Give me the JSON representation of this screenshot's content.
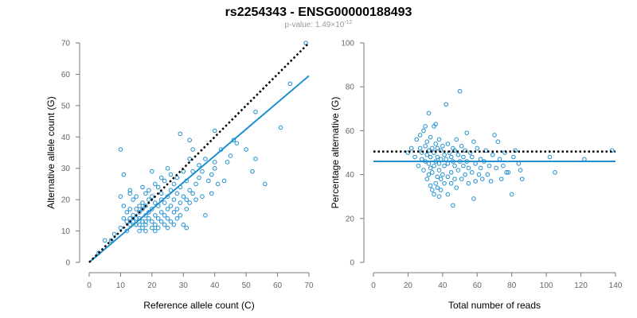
{
  "title": "rs2254343 - ENSG00000188493",
  "subtitle": {
    "prefix": "p-value: 1.49×10",
    "exponent": "-12"
  },
  "colors": {
    "points": "#1f8fd0",
    "fit": "#1f8fd0",
    "reference": "#000000",
    "axis": "#777777"
  },
  "chart_data": [
    {
      "type": "scatter",
      "xlabel": "Reference allele count (C)",
      "ylabel": "Alternative allele count (G)",
      "xlim": [
        0,
        70
      ],
      "ylim": [
        0,
        70
      ],
      "xticks": [
        0,
        10,
        20,
        30,
        40,
        50,
        60,
        70
      ],
      "yticks": [
        0,
        10,
        20,
        30,
        40,
        50,
        60,
        70
      ],
      "grid": false,
      "series": [
        {
          "values": [
            [
              3,
              3
            ],
            [
              5,
              7
            ],
            [
              7,
              7
            ],
            [
              8,
              9
            ],
            [
              10,
              11
            ],
            [
              10,
              36
            ],
            [
              10,
              21
            ],
            [
              11,
              28
            ],
            [
              11,
              18
            ],
            [
              11,
              14
            ],
            [
              12,
              16
            ],
            [
              12,
              13
            ],
            [
              12,
              10
            ],
            [
              13,
              23
            ],
            [
              13,
              22
            ],
            [
              13,
              17
            ],
            [
              13,
              14
            ],
            [
              13,
              12
            ],
            [
              14,
              15
            ],
            [
              14,
              13
            ],
            [
              14,
              20
            ],
            [
              15,
              17
            ],
            [
              15,
              12
            ],
            [
              15,
              14
            ],
            [
              15,
              21
            ],
            [
              16,
              18
            ],
            [
              16,
              16
            ],
            [
              16,
              14
            ],
            [
              16,
              12
            ],
            [
              16,
              10
            ],
            [
              17,
              19
            ],
            [
              17,
              17
            ],
            [
              17,
              13
            ],
            [
              17,
              11
            ],
            [
              17,
              24
            ],
            [
              18,
              22
            ],
            [
              18,
              18
            ],
            [
              18,
              15
            ],
            [
              18,
              13
            ],
            [
              18,
              12
            ],
            [
              18,
              10
            ],
            [
              19,
              20
            ],
            [
              19,
              16
            ],
            [
              19,
              14
            ],
            [
              19,
              23
            ],
            [
              20,
              21
            ],
            [
              20,
              17
            ],
            [
              20,
              13
            ],
            [
              20,
              11
            ],
            [
              20,
              29
            ],
            [
              21,
              19
            ],
            [
              21,
              15
            ],
            [
              21,
              12
            ],
            [
              21,
              10
            ],
            [
              21,
              25
            ],
            [
              22,
              18
            ],
            [
              22,
              14
            ],
            [
              22,
              24
            ],
            [
              22,
              11
            ],
            [
              23,
              20
            ],
            [
              23,
              16
            ],
            [
              23,
              13
            ],
            [
              23,
              22
            ],
            [
              23,
              27
            ],
            [
              24,
              19
            ],
            [
              24,
              15
            ],
            [
              24,
              12
            ],
            [
              24,
              26
            ],
            [
              25,
              21
            ],
            [
              25,
              17
            ],
            [
              25,
              14
            ],
            [
              25,
              11
            ],
            [
              25,
              30
            ],
            [
              26,
              23
            ],
            [
              26,
              18
            ],
            [
              26,
              13
            ],
            [
              26,
              28
            ],
            [
              27,
              20
            ],
            [
              27,
              16
            ],
            [
              27,
              12
            ],
            [
              27,
              25
            ],
            [
              28,
              22
            ],
            [
              28,
              17
            ],
            [
              28,
              14
            ],
            [
              28,
              27
            ],
            [
              29,
              24
            ],
            [
              29,
              19
            ],
            [
              29,
              15
            ],
            [
              29,
              41
            ],
            [
              30,
              29
            ],
            [
              30,
              21
            ],
            [
              30,
              12
            ],
            [
              31,
              26
            ],
            [
              31,
              20
            ],
            [
              31,
              17
            ],
            [
              31,
              11
            ],
            [
              32,
              33
            ],
            [
              32,
              23
            ],
            [
              32,
              19
            ],
            [
              32,
              39
            ],
            [
              33,
              29
            ],
            [
              33,
              22
            ],
            [
              33,
              36
            ],
            [
              34,
              25
            ],
            [
              34,
              20
            ],
            [
              35,
              31
            ],
            [
              35,
              27
            ],
            [
              36,
              29
            ],
            [
              36,
              21
            ],
            [
              37,
              33
            ],
            [
              37,
              15
            ],
            [
              38,
              26
            ],
            [
              39,
              28
            ],
            [
              39,
              22
            ],
            [
              40,
              32
            ],
            [
              40,
              30
            ],
            [
              40,
              42
            ],
            [
              41,
              25
            ],
            [
              42,
              36
            ],
            [
              43,
              26
            ],
            [
              44,
              32
            ],
            [
              45,
              34
            ],
            [
              46,
              39
            ],
            [
              47,
              38
            ],
            [
              50,
              36
            ],
            [
              52,
              29
            ],
            [
              53,
              48
            ],
            [
              53,
              33
            ],
            [
              56,
              25
            ],
            [
              61,
              43
            ],
            [
              64,
              57
            ],
            [
              69,
              70
            ]
          ]
        }
      ],
      "fit_line": {
        "x": [
          0,
          70
        ],
        "y": [
          0,
          59.5
        ]
      },
      "reference_line": {
        "x": [
          0,
          70
        ],
        "y": [
          0,
          70
        ]
      }
    },
    {
      "type": "scatter",
      "xlabel": "Total number of reads",
      "ylabel": "Percentage alternative (G)",
      "xlim": [
        0,
        140
      ],
      "ylim": [
        0,
        100
      ],
      "xticks": [
        0,
        20,
        40,
        60,
        80,
        100,
        120,
        140
      ],
      "yticks": [
        0,
        20,
        40,
        60,
        80,
        100
      ],
      "grid": false,
      "series": [
        {
          "values": [
            [
              20,
              50
            ],
            [
              22,
              52
            ],
            [
              24,
              48
            ],
            [
              25,
              56
            ],
            [
              26,
              44
            ],
            [
              27,
              52
            ],
            [
              27,
              58
            ],
            [
              28,
              47
            ],
            [
              28,
              50
            ],
            [
              29,
              60
            ],
            [
              29,
              42
            ],
            [
              30,
              53
            ],
            [
              30,
              46
            ],
            [
              30,
              62
            ],
            [
              31,
              38
            ],
            [
              31,
              49
            ],
            [
              31,
              55
            ],
            [
              32,
              40
            ],
            [
              32,
              45
            ],
            [
              32,
              51
            ],
            [
              32,
              68
            ],
            [
              33,
              35
            ],
            [
              33,
              43
            ],
            [
              33,
              48
            ],
            [
              33,
              57
            ],
            [
              34,
              33
            ],
            [
              34,
              41
            ],
            [
              34,
              52
            ],
            [
              35,
              31
            ],
            [
              35,
              44
            ],
            [
              35,
              50
            ],
            [
              35,
              62
            ],
            [
              36,
              36
            ],
            [
              36,
              46
            ],
            [
              36,
              54
            ],
            [
              36,
              63
            ],
            [
              37,
              34
            ],
            [
              37,
              39
            ],
            [
              37,
              48
            ],
            [
              37,
              52
            ],
            [
              38,
              30
            ],
            [
              38,
              42
            ],
            [
              38,
              45
            ],
            [
              38,
              56
            ],
            [
              39,
              33
            ],
            [
              39,
              38
            ],
            [
              39,
              47
            ],
            [
              39,
              51
            ],
            [
              40,
              40
            ],
            [
              40,
              53
            ],
            [
              41,
              36
            ],
            [
              41,
              44
            ],
            [
              41,
              49
            ],
            [
              42,
              72
            ],
            [
              42,
              47
            ],
            [
              43,
              31
            ],
            [
              43,
              39
            ],
            [
              43,
              45
            ],
            [
              43,
              54
            ],
            [
              44,
              50
            ],
            [
              45,
              36
            ],
            [
              45,
              41
            ],
            [
              45,
              48
            ],
            [
              46,
              26
            ],
            [
              46,
              46
            ],
            [
              46,
              52
            ],
            [
              47,
              38
            ],
            [
              47,
              44
            ],
            [
              47,
              51
            ],
            [
              48,
              56
            ],
            [
              48,
              34
            ],
            [
              49,
              42
            ],
            [
              49,
              49
            ],
            [
              50,
              78
            ],
            [
              50,
              46
            ],
            [
              51,
              38
            ],
            [
              51,
              53
            ],
            [
              52,
              44
            ],
            [
              52,
              48
            ],
            [
              53,
              40
            ],
            [
              53,
              51
            ],
            [
              54,
              59
            ],
            [
              54,
              46
            ],
            [
              55,
              36
            ],
            [
              55,
              43
            ],
            [
              56,
              50
            ],
            [
              57,
              41
            ],
            [
              57,
              48
            ],
            [
              58,
              29
            ],
            [
              58,
              55
            ],
            [
              59,
              37
            ],
            [
              59,
              45
            ],
            [
              60,
              52
            ],
            [
              61,
              40
            ],
            [
              62,
              47
            ],
            [
              62,
              43
            ],
            [
              63,
              38
            ],
            [
              64,
              46
            ],
            [
              65,
              51
            ],
            [
              66,
              40
            ],
            [
              67,
              44
            ],
            [
              68,
              37
            ],
            [
              69,
              49
            ],
            [
              70,
              58
            ],
            [
              71,
              43
            ],
            [
              72,
              55
            ],
            [
              73,
              47
            ],
            [
              74,
              38
            ],
            [
              75,
              44
            ],
            [
              76,
              50
            ],
            [
              77,
              41
            ],
            [
              78,
              41
            ],
            [
              80,
              31
            ],
            [
              81,
              48
            ],
            [
              82,
              51
            ],
            [
              84,
              45
            ],
            [
              85,
              42
            ],
            [
              86,
              38
            ],
            [
              102,
              48
            ],
            [
              105,
              41
            ],
            [
              122,
              47
            ],
            [
              138,
              51
            ]
          ]
        }
      ],
      "fit_line": {
        "x": [
          0,
          140
        ],
        "y": [
          46,
          46
        ]
      },
      "reference_line": {
        "x": [
          0,
          140
        ],
        "y": [
          50.5,
          50.5
        ]
      }
    }
  ]
}
